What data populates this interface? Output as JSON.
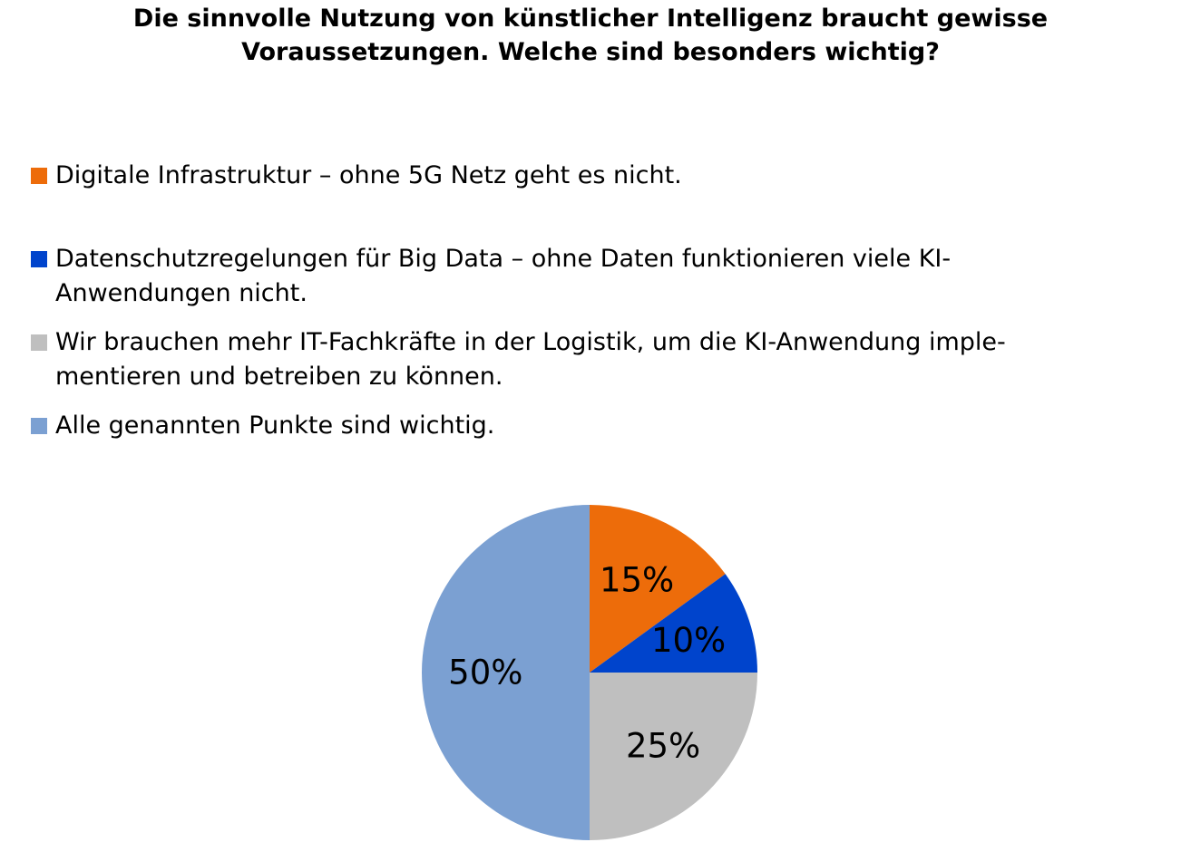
{
  "chart_data": {
    "type": "pie",
    "title_lines": [
      "Die sinnvolle Nutzung von künstlicher Intelligenz braucht gewisse",
      "Voraussetzungen. Welche sind besonders wichtig?"
    ],
    "slices": [
      {
        "label_lines": [
          "Digitale Infrastruktur – ohne 5G Netz geht es nicht."
        ],
        "value": 15,
        "data_label": "15%",
        "color": "#ED6C0A"
      },
      {
        "label_lines": [
          "Datenschutzregelungen für Big Data – ohne Daten funktionieren viele KI-",
          "Anwendungen nicht."
        ],
        "value": 10,
        "data_label": "10%",
        "color": "#0044CC"
      },
      {
        "label_lines": [
          "Wir brauchen mehr IT-Fachkräfte in der Logistik, um die KI-Anwendung imple-",
          "mentieren und betreiben zu können."
        ],
        "value": 25,
        "data_label": "25%",
        "color": "#BFBFBF"
      },
      {
        "label_lines": [
          "Alle genannten Punkte sind wichtig."
        ],
        "value": 50,
        "data_label": "50%",
        "color": "#7BA0D2"
      }
    ],
    "legend_position": "top-left"
  }
}
